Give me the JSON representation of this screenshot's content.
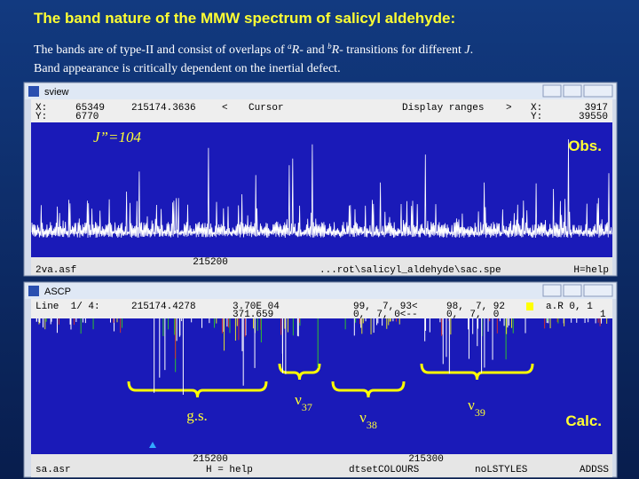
{
  "title": "The band nature of the MMW spectrum of salicyl aldehyde:",
  "subtitle": {
    "line1": [
      "The bands are of type-II and consist of overlaps of ",
      "a",
      "R",
      "- and ",
      "b",
      "R",
      "- transitions for different ",
      "J",
      "."
    ],
    "line2": "Band appearance is critically dependent on the inertial defect."
  },
  "obs_window": {
    "title": "sview",
    "header": {
      "row1": [
        "X:",
        "65349",
        "215174.3636",
        "<",
        "Cursor",
        "Display ranges",
        ">",
        "X:",
        "3917"
      ],
      "row2": [
        "Y:",
        "6770",
        "Y:",
        "39550"
      ]
    },
    "label": "J”=104",
    "tag": "Obs.",
    "axis_label": "215200",
    "status": [
      "2va.asf",
      "...rot\\salicyl_aldehyde\\sac.spe",
      "H=help"
    ]
  },
  "calc_window": {
    "title": "ASCP",
    "header": {
      "row1": [
        "Line  1/ 4:",
        "215174.4278",
        "3.70E 04",
        "99,  7, 93<",
        "98,  7, 92",
        "a.R 0, 1"
      ],
      "row2": [
        "371.659",
        "0,  7, 0<--",
        "0,  7,  0",
        "1"
      ]
    },
    "bands": [
      {
        "label": "g.s."
      },
      {
        "label": "ν",
        "sub": "37"
      },
      {
        "label": "ν",
        "sub": "38"
      },
      {
        "label": "ν",
        "sub": "39"
      }
    ],
    "tag": "Calc.",
    "axis_labels": [
      "215200",
      "215300"
    ],
    "status": [
      "sa.asr",
      "H = help",
      "dtsetCOLOURS",
      "noLSTYLES",
      "ADDSS"
    ]
  }
}
